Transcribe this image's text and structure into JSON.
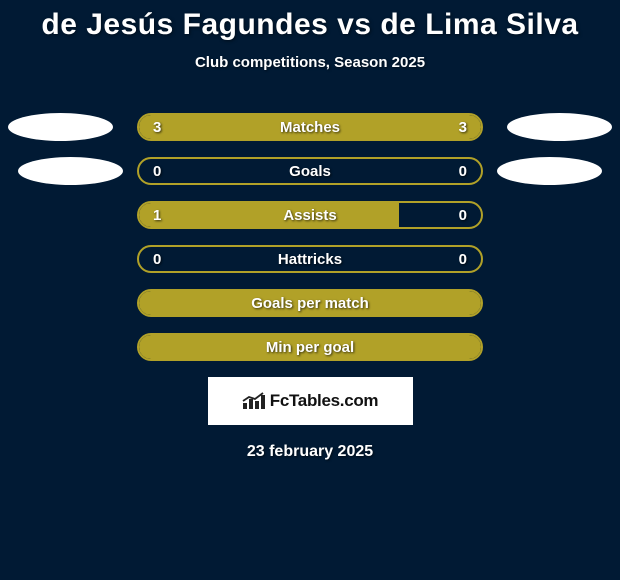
{
  "title": "de Jesús Fagundes vs de Lima Silva",
  "subtitle": "Club competitions, Season 2025",
  "date": "23 february 2025",
  "logo_text": "FcTables.com",
  "colors": {
    "background": "#011a34",
    "accent": "#b1a128",
    "accent_border": "#b1a128",
    "white": "#ffffff"
  },
  "stats": [
    {
      "label": "Matches",
      "left_val": "3",
      "right_val": "3",
      "left_pct": 50,
      "right_pct": 50,
      "fill_color": "#b1a128",
      "border_color": "#b1a128",
      "show_avatar": true,
      "avatar_class": ""
    },
    {
      "label": "Goals",
      "left_val": "0",
      "right_val": "0",
      "left_pct": 0,
      "right_pct": 0,
      "fill_color": "#b1a128",
      "border_color": "#b1a128",
      "show_avatar": true,
      "avatar_class": "r2"
    },
    {
      "label": "Assists",
      "left_val": "1",
      "right_val": "0",
      "left_pct": 76,
      "right_pct": 0,
      "fill_color": "#b1a128",
      "border_color": "#b1a128",
      "show_avatar": false,
      "avatar_class": ""
    },
    {
      "label": "Hattricks",
      "left_val": "0",
      "right_val": "0",
      "left_pct": 0,
      "right_pct": 0,
      "fill_color": "#b1a128",
      "border_color": "#b1a128",
      "show_avatar": false,
      "avatar_class": ""
    },
    {
      "label": "Goals per match",
      "left_val": "",
      "right_val": "",
      "left_pct": 100,
      "right_pct": 0,
      "fill_color": "#b1a128",
      "border_color": "#b1a128",
      "show_avatar": false,
      "avatar_class": ""
    },
    {
      "label": "Min per goal",
      "left_val": "",
      "right_val": "",
      "left_pct": 100,
      "right_pct": 0,
      "fill_color": "#b1a128",
      "border_color": "#b1a128",
      "show_avatar": false,
      "avatar_class": ""
    }
  ]
}
